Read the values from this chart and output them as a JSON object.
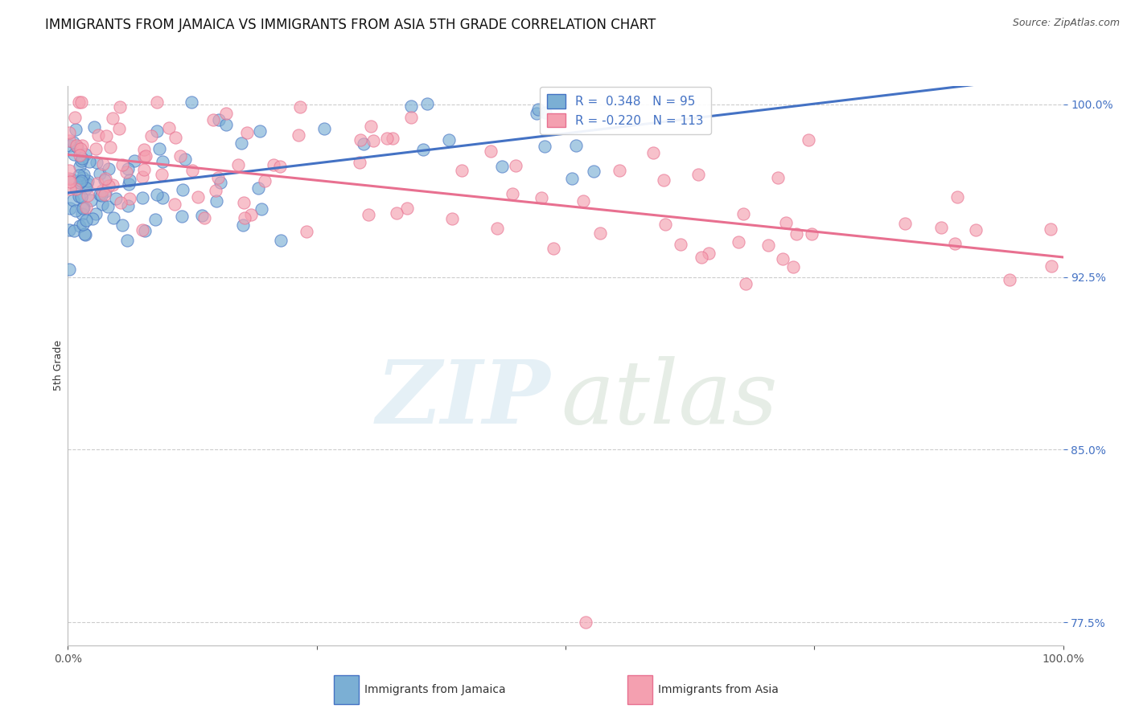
{
  "title": "IMMIGRANTS FROM JAMAICA VS IMMIGRANTS FROM ASIA 5TH GRADE CORRELATION CHART",
  "source": "Source: ZipAtlas.com",
  "ylabel": "5th Grade",
  "xlim": [
    0.0,
    1.0
  ],
  "ylim": [
    0.765,
    1.008
  ],
  "yticks": [
    0.775,
    0.85,
    0.925,
    1.0
  ],
  "ytick_labels": [
    "77.5%",
    "85.0%",
    "92.5%",
    "100.0%"
  ],
  "legend_jamaica": "Immigrants from Jamaica",
  "legend_asia": "Immigrants from Asia",
  "r_jamaica": 0.348,
  "n_jamaica": 95,
  "r_asia": -0.22,
  "n_asia": 113,
  "color_jamaica": "#7BAFD4",
  "color_asia": "#F4A0B0",
  "trend_color_jamaica": "#4472C4",
  "trend_color_asia": "#E87090",
  "background_color": "#FFFFFF",
  "title_fontsize": 12,
  "axis_label_fontsize": 9,
  "tick_fontsize": 10,
  "legend_fontsize": 11
}
